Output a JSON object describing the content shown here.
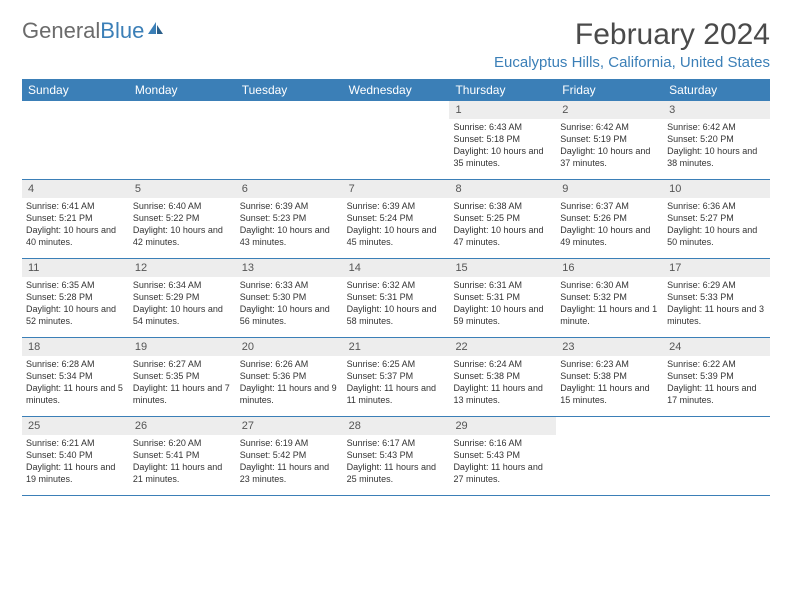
{
  "brand": {
    "part1": "General",
    "part2": "Blue"
  },
  "title": "February 2024",
  "location": "Eucalyptus Hills, California, United States",
  "colors": {
    "accent": "#3b7fb7",
    "header_bg": "#3b7fb7",
    "day_num_bg": "#ededed"
  },
  "day_headers": [
    "Sunday",
    "Monday",
    "Tuesday",
    "Wednesday",
    "Thursday",
    "Friday",
    "Saturday"
  ],
  "weeks": [
    [
      {
        "empty": true
      },
      {
        "empty": true
      },
      {
        "empty": true
      },
      {
        "empty": true
      },
      {
        "num": "1",
        "sunrise": "Sunrise: 6:43 AM",
        "sunset": "Sunset: 5:18 PM",
        "daylight": "Daylight: 10 hours and 35 minutes."
      },
      {
        "num": "2",
        "sunrise": "Sunrise: 6:42 AM",
        "sunset": "Sunset: 5:19 PM",
        "daylight": "Daylight: 10 hours and 37 minutes."
      },
      {
        "num": "3",
        "sunrise": "Sunrise: 6:42 AM",
        "sunset": "Sunset: 5:20 PM",
        "daylight": "Daylight: 10 hours and 38 minutes."
      }
    ],
    [
      {
        "num": "4",
        "sunrise": "Sunrise: 6:41 AM",
        "sunset": "Sunset: 5:21 PM",
        "daylight": "Daylight: 10 hours and 40 minutes."
      },
      {
        "num": "5",
        "sunrise": "Sunrise: 6:40 AM",
        "sunset": "Sunset: 5:22 PM",
        "daylight": "Daylight: 10 hours and 42 minutes."
      },
      {
        "num": "6",
        "sunrise": "Sunrise: 6:39 AM",
        "sunset": "Sunset: 5:23 PM",
        "daylight": "Daylight: 10 hours and 43 minutes."
      },
      {
        "num": "7",
        "sunrise": "Sunrise: 6:39 AM",
        "sunset": "Sunset: 5:24 PM",
        "daylight": "Daylight: 10 hours and 45 minutes."
      },
      {
        "num": "8",
        "sunrise": "Sunrise: 6:38 AM",
        "sunset": "Sunset: 5:25 PM",
        "daylight": "Daylight: 10 hours and 47 minutes."
      },
      {
        "num": "9",
        "sunrise": "Sunrise: 6:37 AM",
        "sunset": "Sunset: 5:26 PM",
        "daylight": "Daylight: 10 hours and 49 minutes."
      },
      {
        "num": "10",
        "sunrise": "Sunrise: 6:36 AM",
        "sunset": "Sunset: 5:27 PM",
        "daylight": "Daylight: 10 hours and 50 minutes."
      }
    ],
    [
      {
        "num": "11",
        "sunrise": "Sunrise: 6:35 AM",
        "sunset": "Sunset: 5:28 PM",
        "daylight": "Daylight: 10 hours and 52 minutes."
      },
      {
        "num": "12",
        "sunrise": "Sunrise: 6:34 AM",
        "sunset": "Sunset: 5:29 PM",
        "daylight": "Daylight: 10 hours and 54 minutes."
      },
      {
        "num": "13",
        "sunrise": "Sunrise: 6:33 AM",
        "sunset": "Sunset: 5:30 PM",
        "daylight": "Daylight: 10 hours and 56 minutes."
      },
      {
        "num": "14",
        "sunrise": "Sunrise: 6:32 AM",
        "sunset": "Sunset: 5:31 PM",
        "daylight": "Daylight: 10 hours and 58 minutes."
      },
      {
        "num": "15",
        "sunrise": "Sunrise: 6:31 AM",
        "sunset": "Sunset: 5:31 PM",
        "daylight": "Daylight: 10 hours and 59 minutes."
      },
      {
        "num": "16",
        "sunrise": "Sunrise: 6:30 AM",
        "sunset": "Sunset: 5:32 PM",
        "daylight": "Daylight: 11 hours and 1 minute."
      },
      {
        "num": "17",
        "sunrise": "Sunrise: 6:29 AM",
        "sunset": "Sunset: 5:33 PM",
        "daylight": "Daylight: 11 hours and 3 minutes."
      }
    ],
    [
      {
        "num": "18",
        "sunrise": "Sunrise: 6:28 AM",
        "sunset": "Sunset: 5:34 PM",
        "daylight": "Daylight: 11 hours and 5 minutes."
      },
      {
        "num": "19",
        "sunrise": "Sunrise: 6:27 AM",
        "sunset": "Sunset: 5:35 PM",
        "daylight": "Daylight: 11 hours and 7 minutes."
      },
      {
        "num": "20",
        "sunrise": "Sunrise: 6:26 AM",
        "sunset": "Sunset: 5:36 PM",
        "daylight": "Daylight: 11 hours and 9 minutes."
      },
      {
        "num": "21",
        "sunrise": "Sunrise: 6:25 AM",
        "sunset": "Sunset: 5:37 PM",
        "daylight": "Daylight: 11 hours and 11 minutes."
      },
      {
        "num": "22",
        "sunrise": "Sunrise: 6:24 AM",
        "sunset": "Sunset: 5:38 PM",
        "daylight": "Daylight: 11 hours and 13 minutes."
      },
      {
        "num": "23",
        "sunrise": "Sunrise: 6:23 AM",
        "sunset": "Sunset: 5:38 PM",
        "daylight": "Daylight: 11 hours and 15 minutes."
      },
      {
        "num": "24",
        "sunrise": "Sunrise: 6:22 AM",
        "sunset": "Sunset: 5:39 PM",
        "daylight": "Daylight: 11 hours and 17 minutes."
      }
    ],
    [
      {
        "num": "25",
        "sunrise": "Sunrise: 6:21 AM",
        "sunset": "Sunset: 5:40 PM",
        "daylight": "Daylight: 11 hours and 19 minutes."
      },
      {
        "num": "26",
        "sunrise": "Sunrise: 6:20 AM",
        "sunset": "Sunset: 5:41 PM",
        "daylight": "Daylight: 11 hours and 21 minutes."
      },
      {
        "num": "27",
        "sunrise": "Sunrise: 6:19 AM",
        "sunset": "Sunset: 5:42 PM",
        "daylight": "Daylight: 11 hours and 23 minutes."
      },
      {
        "num": "28",
        "sunrise": "Sunrise: 6:17 AM",
        "sunset": "Sunset: 5:43 PM",
        "daylight": "Daylight: 11 hours and 25 minutes."
      },
      {
        "num": "29",
        "sunrise": "Sunrise: 6:16 AM",
        "sunset": "Sunset: 5:43 PM",
        "daylight": "Daylight: 11 hours and 27 minutes."
      },
      {
        "empty": true
      },
      {
        "empty": true
      }
    ]
  ]
}
